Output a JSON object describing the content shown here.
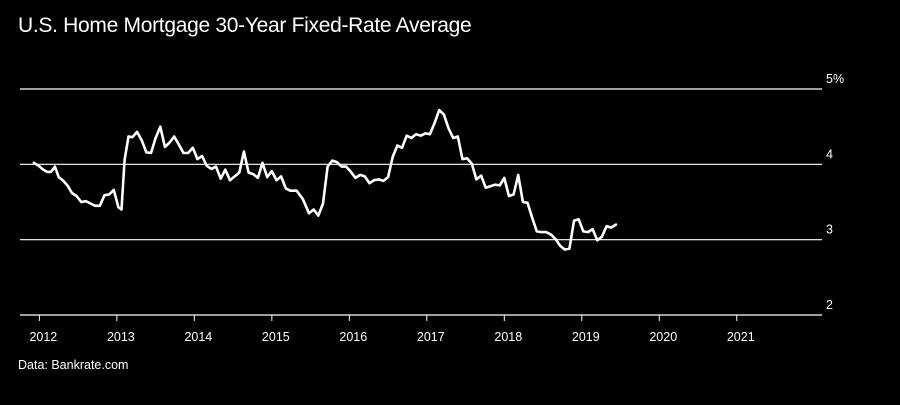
{
  "chart_data": {
    "type": "line",
    "title": "U.S. Home Mortgage 30-Year Fixed-Rate Average",
    "source": "Data: Bankrate.com",
    "xlabel": "",
    "ylabel": "",
    "x_ticks": [
      "2012",
      "2013",
      "2014",
      "2015",
      "2016",
      "2017",
      "2018",
      "2019",
      "2020",
      "2021"
    ],
    "y_ticks": [
      "2",
      "3",
      "4",
      "5%"
    ],
    "y_tick_values": [
      2,
      3,
      4,
      5
    ],
    "ylim": [
      2,
      5
    ],
    "xlim": [
      2011.75,
      2022.1
    ],
    "grid": true,
    "series": [
      {
        "color": "#ffffff",
        "points": [
          [
            2011.93,
            4.02
          ],
          [
            2011.99,
            3.98
          ],
          [
            2012.05,
            3.93
          ],
          [
            2012.1,
            3.9
          ],
          [
            2012.15,
            3.9
          ],
          [
            2012.2,
            3.97
          ],
          [
            2012.25,
            3.83
          ],
          [
            2012.31,
            3.78
          ],
          [
            2012.37,
            3.71
          ],
          [
            2012.42,
            3.62
          ],
          [
            2012.48,
            3.58
          ],
          [
            2012.54,
            3.5
          ],
          [
            2012.6,
            3.51
          ],
          [
            2012.66,
            3.48
          ],
          [
            2012.72,
            3.45
          ],
          [
            2012.78,
            3.45
          ],
          [
            2012.84,
            3.59
          ],
          [
            2012.9,
            3.6
          ],
          [
            2012.96,
            3.66
          ],
          [
            2013.02,
            3.43
          ],
          [
            2013.06,
            3.4
          ],
          [
            2013.1,
            4.06
          ],
          [
            2013.15,
            4.37
          ],
          [
            2013.2,
            4.36
          ],
          [
            2013.26,
            4.43
          ],
          [
            2013.32,
            4.32
          ],
          [
            2013.38,
            4.16
          ],
          [
            2013.44,
            4.15
          ],
          [
            2013.5,
            4.35
          ],
          [
            2013.56,
            4.5
          ],
          [
            2013.62,
            4.23
          ],
          [
            2013.68,
            4.29
          ],
          [
            2013.74,
            4.37
          ],
          [
            2013.8,
            4.26
          ],
          [
            2013.86,
            4.15
          ],
          [
            2013.92,
            4.15
          ],
          [
            2013.98,
            4.22
          ],
          [
            2014.04,
            4.07
          ],
          [
            2014.1,
            4.11
          ],
          [
            2014.16,
            3.98
          ],
          [
            2014.22,
            3.94
          ],
          [
            2014.28,
            3.97
          ],
          [
            2014.34,
            3.81
          ],
          [
            2014.4,
            3.93
          ],
          [
            2014.46,
            3.79
          ],
          [
            2014.52,
            3.84
          ],
          [
            2014.58,
            3.89
          ],
          [
            2014.64,
            4.17
          ],
          [
            2014.7,
            3.89
          ],
          [
            2014.76,
            3.87
          ],
          [
            2014.82,
            3.82
          ],
          [
            2014.88,
            4.02
          ],
          [
            2014.94,
            3.83
          ],
          [
            2015.0,
            3.91
          ],
          [
            2015.06,
            3.79
          ],
          [
            2015.12,
            3.84
          ],
          [
            2015.18,
            3.68
          ],
          [
            2015.24,
            3.65
          ],
          [
            2015.32,
            3.65
          ],
          [
            2015.4,
            3.54
          ],
          [
            2015.48,
            3.35
          ],
          [
            2015.54,
            3.4
          ],
          [
            2015.6,
            3.32
          ],
          [
            2015.66,
            3.48
          ],
          [
            2015.72,
            3.97
          ],
          [
            2015.78,
            4.05
          ],
          [
            2015.84,
            4.03
          ],
          [
            2015.9,
            3.97
          ],
          [
            2015.96,
            3.97
          ],
          [
            2016.02,
            3.9
          ],
          [
            2016.08,
            3.82
          ],
          [
            2016.14,
            3.86
          ],
          [
            2016.2,
            3.84
          ],
          [
            2016.26,
            3.75
          ],
          [
            2016.32,
            3.79
          ],
          [
            2016.38,
            3.8
          ],
          [
            2016.44,
            3.78
          ],
          [
            2016.5,
            3.83
          ],
          [
            2016.56,
            4.1
          ],
          [
            2016.62,
            4.25
          ],
          [
            2016.68,
            4.22
          ],
          [
            2016.74,
            4.38
          ],
          [
            2016.8,
            4.35
          ],
          [
            2016.86,
            4.4
          ],
          [
            2016.92,
            4.38
          ],
          [
            2016.98,
            4.41
          ],
          [
            2017.04,
            4.4
          ],
          [
            2017.1,
            4.55
          ],
          [
            2017.16,
            4.72
          ],
          [
            2017.22,
            4.66
          ],
          [
            2017.28,
            4.48
          ],
          [
            2017.34,
            4.35
          ],
          [
            2017.4,
            4.37
          ],
          [
            2017.46,
            4.07
          ],
          [
            2017.52,
            4.08
          ],
          [
            2017.58,
            4.01
          ],
          [
            2017.64,
            3.8
          ],
          [
            2017.7,
            3.85
          ],
          [
            2017.76,
            3.69
          ],
          [
            2017.82,
            3.71
          ],
          [
            2017.88,
            3.73
          ],
          [
            2017.94,
            3.72
          ],
          [
            2018.0,
            3.82
          ],
          [
            2018.06,
            3.58
          ],
          [
            2018.12,
            3.6
          ],
          [
            2018.18,
            3.86
          ],
          [
            2018.24,
            3.5
          ],
          [
            2018.3,
            3.49
          ],
          [
            2018.36,
            3.29
          ],
          [
            2018.42,
            3.11
          ],
          [
            2018.48,
            3.1
          ],
          [
            2018.54,
            3.1
          ],
          [
            2018.6,
            3.07
          ],
          [
            2018.66,
            3.01
          ],
          [
            2018.72,
            2.92
          ],
          [
            2018.78,
            2.87
          ],
          [
            2018.84,
            2.88
          ],
          [
            2018.9,
            3.25
          ],
          [
            2018.96,
            3.27
          ],
          [
            2019.02,
            3.11
          ],
          [
            2019.08,
            3.1
          ],
          [
            2019.14,
            3.14
          ],
          [
            2019.2,
            2.99
          ],
          [
            2019.26,
            3.04
          ],
          [
            2019.32,
            3.18
          ],
          [
            2019.38,
            3.16
          ],
          [
            2019.44,
            3.2
          ]
        ]
      }
    ]
  }
}
